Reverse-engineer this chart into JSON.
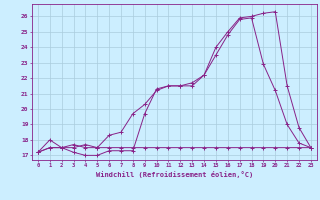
{
  "title": "",
  "xlabel": "Windchill (Refroidissement éolien,°C)",
  "ylabel": "",
  "bg_color": "#cceeff",
  "grid_color": "#aaccdd",
  "line_color": "#882288",
  "xlim": [
    -0.5,
    23.5
  ],
  "ylim": [
    16.7,
    26.8
  ],
  "yticks": [
    17,
    18,
    19,
    20,
    21,
    22,
    23,
    24,
    25,
    26
  ],
  "xticks": [
    0,
    1,
    2,
    3,
    4,
    5,
    6,
    7,
    8,
    9,
    10,
    11,
    12,
    13,
    14,
    15,
    16,
    17,
    18,
    19,
    20,
    21,
    22,
    23
  ],
  "series1_x": [
    0,
    1,
    2,
    3,
    4,
    5,
    6,
    7,
    8,
    9,
    10,
    11,
    12,
    13,
    14,
    15,
    16,
    17,
    18,
    19,
    20,
    21,
    22,
    23
  ],
  "series1_y": [
    17.2,
    18.0,
    17.5,
    17.2,
    17.0,
    17.0,
    17.3,
    17.3,
    17.3,
    19.7,
    21.3,
    21.5,
    21.5,
    21.5,
    22.2,
    23.5,
    24.8,
    25.8,
    25.9,
    22.9,
    21.2,
    19.0,
    17.8,
    17.5
  ],
  "series2_x": [
    0,
    1,
    2,
    3,
    4,
    5,
    6,
    7,
    8,
    9,
    10,
    11,
    12,
    13,
    14,
    15,
    16,
    17,
    18,
    19,
    20,
    21,
    22,
    23
  ],
  "series2_y": [
    17.2,
    17.5,
    17.5,
    17.5,
    17.7,
    17.5,
    18.3,
    18.5,
    19.7,
    20.3,
    21.2,
    21.5,
    21.5,
    21.7,
    22.2,
    24.0,
    25.0,
    25.9,
    26.0,
    26.2,
    26.3,
    21.5,
    18.8,
    17.5
  ],
  "series3_x": [
    0,
    1,
    2,
    3,
    4,
    5,
    6,
    7,
    8,
    9,
    10,
    11,
    12,
    13,
    14,
    15,
    16,
    17,
    18,
    19,
    20,
    21,
    22,
    23
  ],
  "series3_y": [
    17.2,
    17.5,
    17.5,
    17.7,
    17.5,
    17.5,
    17.5,
    17.5,
    17.5,
    17.5,
    17.5,
    17.5,
    17.5,
    17.5,
    17.5,
    17.5,
    17.5,
    17.5,
    17.5,
    17.5,
    17.5,
    17.5,
    17.5,
    17.5
  ]
}
